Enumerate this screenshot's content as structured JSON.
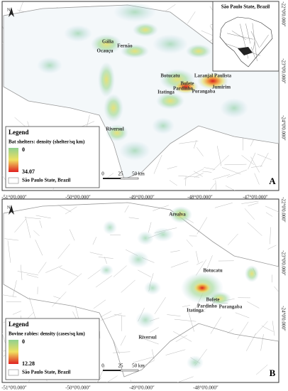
{
  "panels": [
    {
      "letter": "A",
      "legend": {
        "title": "Legend",
        "subtitle": "Bat shelters: density (shelter/sq km)",
        "low": "0",
        "high": "34.07",
        "boundary": "São Paulo State, Brazil"
      },
      "scale": [
        "0",
        "25",
        "50 km"
      ],
      "north": "N",
      "lat": [
        "-22°0'0.000″",
        "-23°0'0.000″",
        "-24°0'0.000″"
      ],
      "lon": [
        "-51°0'0.000″",
        "-50°0'0.000″",
        "-49°0'0.000″",
        "-48°0'0.000″",
        "-47°0'0.000″"
      ],
      "places": [
        "Gália",
        "Fernão",
        "Ocauçu",
        "Botucatu",
        "Laranjal Paulista",
        "Jumirim",
        "Bofete",
        "Pardinho",
        "Itatinga",
        "Porangaba",
        "Riversul"
      ],
      "inset": "São Paulo State, Brazil"
    },
    {
      "letter": "B",
      "legend": {
        "title": "Legend",
        "subtitle": "Bovine rabies: density (cases/sq km)",
        "low": "0",
        "high": "12.28",
        "boundary": "São Paulo State, Brazil"
      },
      "scale": [
        "0",
        "25",
        "50 km"
      ],
      "north": "N",
      "lat": [
        "-22°0'0.000″",
        "-23°0'0.000″",
        "-24°0'0.000″"
      ],
      "lon": [
        "-51°0'0.000″",
        "-50°0'0.000″",
        "-49°0'0.000″",
        "-48°0'0.000″"
      ],
      "places": [
        "Arealva",
        "Botucatu",
        "Bofete",
        "Pardinho",
        "Itatinga",
        "Porangaba",
        "Riversul"
      ]
    }
  ]
}
